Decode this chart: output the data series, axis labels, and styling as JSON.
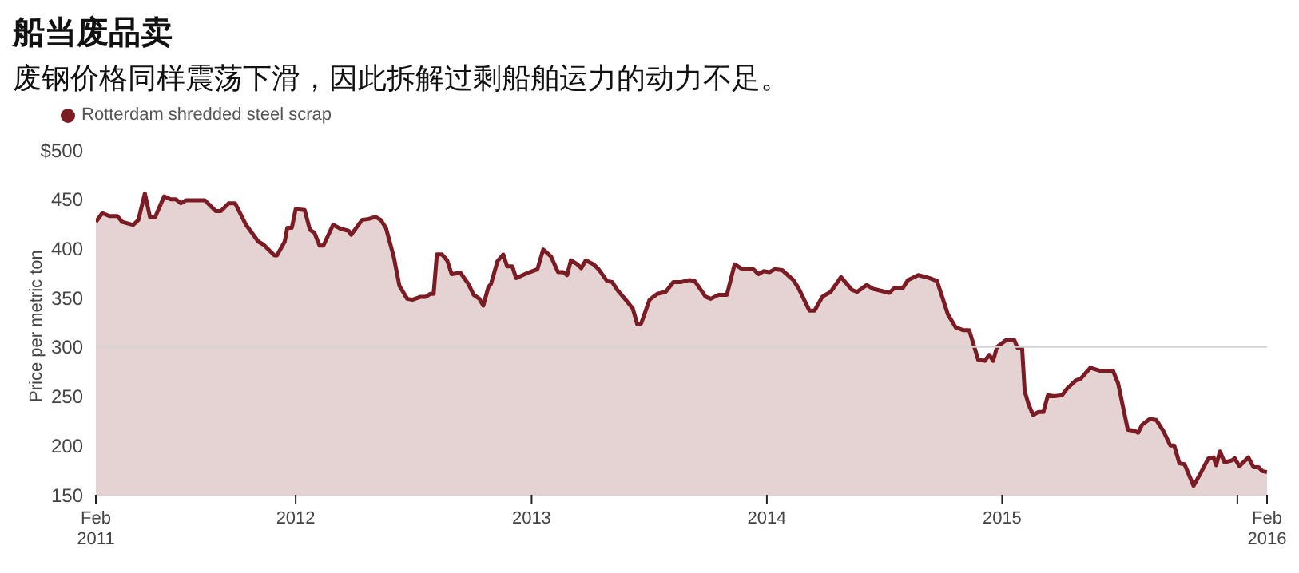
{
  "chart_data": {
    "type": "area",
    "title": "船当废品卖",
    "subtitle": "废钢价格同样震荡下滑，因此拆解过剩船舶运力的动力不足。",
    "ylabel": "Price per metric ton",
    "x": [
      "2011-02-25",
      "2011-03-07",
      "2011-03-18",
      "2011-03-30",
      "2011-04-07",
      "2011-04-24",
      "2011-05-02",
      "2011-05-12",
      "2011-05-20",
      "2011-05-28",
      "2011-06-11",
      "2011-06-21",
      "2011-06-29",
      "2011-07-07",
      "2011-07-15",
      "2011-08-13",
      "2011-08-30",
      "2011-09-07",
      "2011-09-19",
      "2011-09-29",
      "2011-10-16",
      "2011-11-04",
      "2011-11-12",
      "2011-11-29",
      "2011-12-03",
      "2011-12-15",
      "2011-12-19",
      "2011-12-26",
      "2012-01-01",
      "2012-01-15",
      "2012-01-23",
      "2012-01-30",
      "2012-02-07",
      "2012-02-13",
      "2012-02-28",
      "2012-03-11",
      "2012-03-23",
      "2012-03-27",
      "2012-04-13",
      "2012-04-23",
      "2012-05-04",
      "2012-05-12",
      "2012-05-20",
      "2012-06-01",
      "2012-06-10",
      "2012-06-22",
      "2012-06-30",
      "2012-07-13",
      "2012-07-21",
      "2012-07-28",
      "2012-08-02",
      "2012-08-07",
      "2012-08-15",
      "2012-08-23",
      "2012-08-30",
      "2012-09-09",
      "2012-09-13",
      "2012-09-25",
      "2012-10-03",
      "2012-10-12",
      "2012-10-18",
      "2012-10-26",
      "2012-10-30",
      "2012-11-09",
      "2012-11-18",
      "2012-11-24",
      "2012-12-02",
      "2012-12-08",
      "2012-12-25",
      "2013-01-02",
      "2013-01-10",
      "2013-01-19",
      "2013-01-31",
      "2013-02-11",
      "2013-02-19",
      "2013-02-25",
      "2013-03-03",
      "2013-03-13",
      "2013-03-19",
      "2013-03-26",
      "2013-04-07",
      "2013-04-15",
      "2013-04-28",
      "2013-05-06",
      "2013-05-14",
      "2013-05-27",
      "2013-06-07",
      "2013-06-14",
      "2013-06-20",
      "2013-07-03",
      "2013-07-15",
      "2013-07-28",
      "2013-08-09",
      "2013-08-21",
      "2013-09-03",
      "2013-09-11",
      "2013-09-28",
      "2013-10-06",
      "2013-10-18",
      "2013-10-31",
      "2013-11-12",
      "2013-11-24",
      "2013-12-11",
      "2013-12-19",
      "2013-12-27",
      "2014-01-05",
      "2014-01-13",
      "2014-01-25",
      "2014-02-11",
      "2014-02-19",
      "2014-03-08",
      "2014-03-16",
      "2014-03-28",
      "2014-04-10",
      "2014-04-26",
      "2014-05-13",
      "2014-05-21",
      "2014-06-05",
      "2014-06-15",
      "2014-07-10",
      "2014-07-18",
      "2014-07-31",
      "2014-08-08",
      "2014-08-24",
      "2014-09-10",
      "2014-09-22",
      "2014-10-09",
      "2014-10-21",
      "2014-11-02",
      "2014-11-11",
      "2014-11-25",
      "2014-12-05",
      "2014-12-12",
      "2014-12-18",
      "2014-12-24",
      "2015-01-07",
      "2015-01-20",
      "2015-01-25",
      "2015-02-01",
      "2015-02-05",
      "2015-02-11",
      "2015-02-18",
      "2015-02-26",
      "2015-03-06",
      "2015-03-13",
      "2015-03-23",
      "2015-04-04",
      "2015-04-12",
      "2015-04-25",
      "2015-05-03",
      "2015-05-18",
      "2015-06-01",
      "2015-06-22",
      "2015-06-30",
      "2015-07-15",
      "2015-07-25",
      "2015-07-31",
      "2015-08-06",
      "2015-08-18",
      "2015-08-28",
      "2015-09-08",
      "2015-09-19",
      "2015-09-25",
      "2015-10-03",
      "2015-10-11",
      "2015-10-25",
      "2015-11-05",
      "2015-11-17",
      "2015-11-25",
      "2015-11-29",
      "2015-12-05",
      "2015-12-12",
      "2015-12-24",
      "2015-12-28",
      "2016-01-04",
      "2016-01-18",
      "2016-01-26",
      "2016-02-03",
      "2016-02-09",
      "2016-02-16"
    ],
    "series": [
      {
        "name": "Rotterdam shredded steel scrap",
        "color": "#7b1c24",
        "values": [
          427,
          436,
          433,
          433,
          427,
          424,
          429,
          456,
          432,
          432,
          453,
          450,
          450,
          446,
          449,
          449,
          438,
          438,
          446,
          446,
          424,
          407,
          404,
          393,
          393,
          407,
          421,
          421,
          440,
          439,
          419,
          416,
          403,
          403,
          424,
          420,
          418,
          414,
          429,
          430,
          432,
          429,
          421,
          392,
          362,
          349,
          348,
          351,
          351,
          354,
          354,
          394,
          394,
          388,
          374,
          375,
          375,
          364,
          353,
          349,
          342,
          361,
          364,
          387,
          394,
          382,
          382,
          370,
          375,
          377,
          379,
          399,
          392,
          376,
          376,
          373,
          388,
          384,
          380,
          388,
          384,
          379,
          367,
          366,
          358,
          348,
          339,
          323,
          324,
          348,
          354,
          356,
          366,
          366,
          368,
          367,
          351,
          349,
          353,
          353,
          384,
          379,
          379,
          374,
          377,
          376,
          379,
          378,
          368,
          360,
          337,
          337,
          351,
          356,
          371,
          358,
          356,
          363,
          359,
          355,
          360,
          360,
          368,
          373,
          370,
          367,
          333,
          320,
          317,
          317,
          287,
          286,
          292,
          286,
          300,
          307,
          307,
          299,
          299,
          255,
          242,
          231,
          234,
          234,
          251,
          250,
          251,
          258,
          266,
          268,
          279,
          276,
          276,
          263,
          216,
          215,
          213,
          221,
          227,
          226,
          215,
          200,
          200,
          182,
          181,
          159,
          172,
          187,
          188,
          180,
          194,
          183,
          185,
          187,
          179,
          188,
          178,
          178,
          174,
          173
        ]
      }
    ],
    "xlim": [
      "2011-02-25",
      "2016-02-16"
    ],
    "xticks": [
      {
        "value": "2011-02-25",
        "label": "Feb 2011"
      },
      {
        "value": "2012-01-01",
        "label": "2012"
      },
      {
        "value": "2013-01-01",
        "label": "2013"
      },
      {
        "value": "2014-01-01",
        "label": "2014"
      },
      {
        "value": "2015-01-01",
        "label": "2015"
      },
      {
        "value": "2016-01-01",
        "label": null
      },
      {
        "value": "2016-02-16",
        "label": "Feb 2016"
      }
    ],
    "ylim": [
      150,
      500
    ],
    "yticks": [
      150,
      200,
      250,
      300,
      350,
      400,
      450,
      {
        "value": 500,
        "label": "$500"
      }
    ],
    "ref_lines": [
      {
        "axis": "y",
        "value": 300,
        "color": "#d4d4d4"
      }
    ],
    "legend": "top left"
  }
}
